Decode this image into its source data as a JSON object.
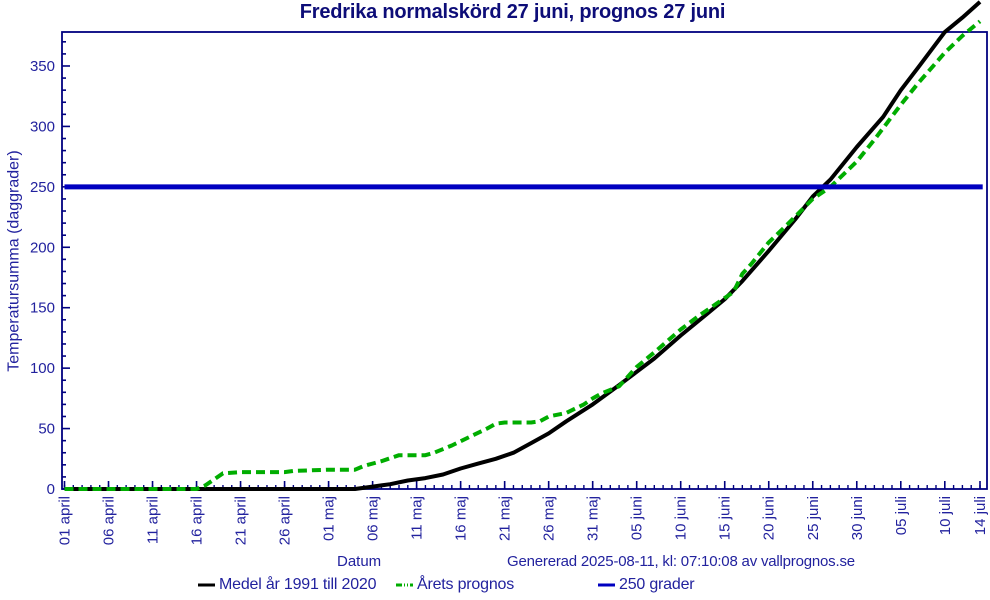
{
  "title": "Fredrika normalskörd 27 juni, prognos 27 juni",
  "footer": {
    "x_axis_title": "Datum",
    "generated_text": "Genererad 2025-08-11, kl: 07:10:08 av vallprognos.se"
  },
  "legend": {
    "items": [
      {
        "label": "Medel år 1991 till 2020",
        "color": "#000000",
        "style": "solid"
      },
      {
        "label": "Årets prognos",
        "color": "#00ad00",
        "style": "dash-dot"
      },
      {
        "label": "250 grader",
        "color": "#0000c0",
        "style": "solid"
      }
    ]
  },
  "colors": {
    "frame": "#000080",
    "tick_text": "#22229e",
    "title_text": "#0d0d78",
    "mean_line": "#000000",
    "forecast_line": "#00ad00",
    "threshold_line": "#0000c0",
    "background": "#ffffff"
  },
  "chart_data": {
    "type": "line",
    "title": "Fredrika normalskörd 27 juni, prognos 27 juni",
    "xlabel": "Datum",
    "ylabel": "Temperatursumma (daggrader)",
    "x_unit": "days since 01 april",
    "ylim": [
      0,
      378
    ],
    "xlim_days": [
      0,
      104.8
    ],
    "grid": false,
    "y_ticks": [
      0,
      50,
      100,
      150,
      200,
      250,
      300,
      350
    ],
    "y_minor_step": 10,
    "x_minor_step_days": 1,
    "x_ticks": [
      {
        "day": 0,
        "label": "01 april"
      },
      {
        "day": 5,
        "label": "06 april"
      },
      {
        "day": 10,
        "label": "11 april"
      },
      {
        "day": 15,
        "label": "16 april"
      },
      {
        "day": 20,
        "label": "21 april"
      },
      {
        "day": 25,
        "label": "26 april"
      },
      {
        "day": 30,
        "label": "01 maj"
      },
      {
        "day": 35,
        "label": "06 maj"
      },
      {
        "day": 40,
        "label": "11 maj"
      },
      {
        "day": 45,
        "label": "16 maj"
      },
      {
        "day": 50,
        "label": "21 maj"
      },
      {
        "day": 55,
        "label": "26 maj"
      },
      {
        "day": 60,
        "label": "31 maj"
      },
      {
        "day": 65,
        "label": "05 juni"
      },
      {
        "day": 70,
        "label": "10 juni"
      },
      {
        "day": 75,
        "label": "15 juni"
      },
      {
        "day": 80,
        "label": "20 juni"
      },
      {
        "day": 85,
        "label": "25 juni"
      },
      {
        "day": 90,
        "label": "30 juni"
      },
      {
        "day": 95,
        "label": "05 juli"
      },
      {
        "day": 100,
        "label": "10 juli"
      },
      {
        "day": 104,
        "label": "14 juli"
      }
    ],
    "series": [
      {
        "name": "Medel år 1991 till 2020",
        "color": "#000000",
        "style": "solid",
        "width": 4,
        "points": [
          [
            0,
            0
          ],
          [
            10,
            0
          ],
          [
            20,
            0
          ],
          [
            30,
            0
          ],
          [
            33,
            0
          ],
          [
            35,
            2
          ],
          [
            37,
            4
          ],
          [
            39,
            7
          ],
          [
            41,
            9
          ],
          [
            43,
            12
          ],
          [
            45,
            17
          ],
          [
            47,
            21
          ],
          [
            49,
            25
          ],
          [
            51,
            30
          ],
          [
            53,
            38
          ],
          [
            55,
            46
          ],
          [
            57,
            56
          ],
          [
            60,
            70
          ],
          [
            63,
            86
          ],
          [
            65,
            97
          ],
          [
            67,
            108
          ],
          [
            70,
            127
          ],
          [
            73,
            145
          ],
          [
            75,
            157
          ],
          [
            77,
            172
          ],
          [
            80,
            197
          ],
          [
            83,
            223
          ],
          [
            85,
            242
          ],
          [
            87,
            256
          ],
          [
            90,
            283
          ],
          [
            93,
            308
          ],
          [
            95,
            330
          ],
          [
            97,
            349
          ],
          [
            100,
            378
          ],
          [
            102,
            390
          ],
          [
            104,
            403
          ]
        ]
      },
      {
        "name": "Årets prognos",
        "color": "#00ad00",
        "style": "dashed",
        "width": 4,
        "points": [
          [
            0,
            0
          ],
          [
            15,
            0
          ],
          [
            16,
            3
          ],
          [
            17,
            8
          ],
          [
            18,
            13
          ],
          [
            20,
            14
          ],
          [
            25,
            14
          ],
          [
            26,
            15
          ],
          [
            30,
            16
          ],
          [
            33,
            16
          ],
          [
            34,
            19
          ],
          [
            36,
            23
          ],
          [
            38,
            28
          ],
          [
            41,
            28
          ],
          [
            42,
            30
          ],
          [
            44,
            36
          ],
          [
            46,
            43
          ],
          [
            48,
            50
          ],
          [
            49,
            54
          ],
          [
            50,
            55
          ],
          [
            53,
            55
          ],
          [
            54,
            56
          ],
          [
            55,
            60
          ],
          [
            57,
            63
          ],
          [
            59,
            70
          ],
          [
            60,
            75
          ],
          [
            61,
            79
          ],
          [
            63,
            85
          ],
          [
            65,
            101
          ],
          [
            67,
            113
          ],
          [
            70,
            132
          ],
          [
            72,
            143
          ],
          [
            75,
            158
          ],
          [
            76,
            163
          ],
          [
            77,
            178
          ],
          [
            78,
            186
          ],
          [
            80,
            204
          ],
          [
            82,
            218
          ],
          [
            85,
            240
          ],
          [
            87,
            250
          ],
          [
            90,
            271
          ],
          [
            92,
            289
          ],
          [
            95,
            318
          ],
          [
            97,
            336
          ],
          [
            100,
            361
          ],
          [
            102,
            375
          ],
          [
            104,
            387
          ]
        ]
      },
      {
        "name": "250 grader",
        "color": "#0000c0",
        "style": "solid",
        "width": 5,
        "points": [
          [
            0,
            250
          ],
          [
            104.3,
            250
          ]
        ]
      }
    ]
  }
}
